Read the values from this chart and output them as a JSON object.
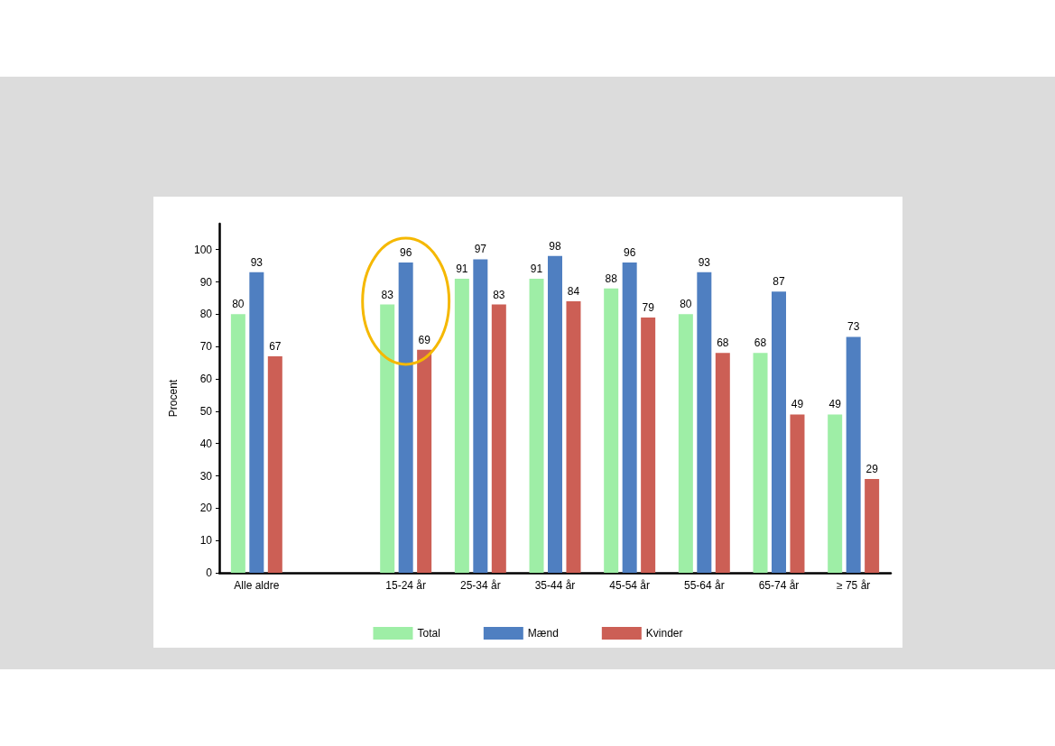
{
  "chart_data": {
    "type": "bar",
    "ylabel": "Procent",
    "categories": [
      "Alle aldre",
      null,
      "15-24 år",
      "25-34 år",
      "35-44 år",
      "45-54 år",
      "55-64 år",
      "65-74 år",
      "≥ 75 år"
    ],
    "series": [
      {
        "name": "Total",
        "color": "#9eeea6",
        "values": [
          80,
          null,
          83,
          91,
          91,
          88,
          80,
          68,
          49
        ]
      },
      {
        "name": "Mænd",
        "color": "#4f7fc1",
        "values": [
          93,
          null,
          96,
          97,
          98,
          96,
          93,
          87,
          73
        ]
      },
      {
        "name": "Kvinder",
        "color": "#cc5f55",
        "values": [
          67,
          null,
          69,
          83,
          84,
          79,
          68,
          49,
          29
        ]
      }
    ],
    "ylim": [
      0,
      108
    ],
    "yticks": [
      0,
      10,
      20,
      30,
      40,
      50,
      60,
      70,
      80,
      90,
      100
    ],
    "data_labels": true,
    "grid": false,
    "legend": "bottom"
  }
}
